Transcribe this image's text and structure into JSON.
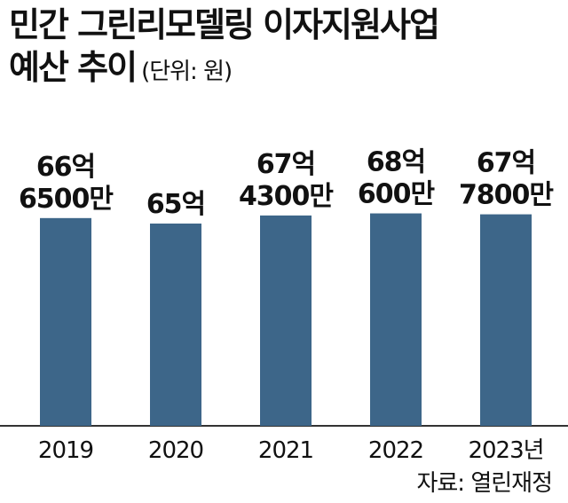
{
  "title": {
    "line1": "민간 그린리모델링 이자지원사업",
    "line2": "예산 추이",
    "unit": "(단위: 원)"
  },
  "source": "자료:  열린재정",
  "chart_data": {
    "type": "bar",
    "categories": [
      "2019",
      "2020",
      "2021",
      "2022",
      "2023년"
    ],
    "values": [
      6665000000,
      6500000000,
      6743000000,
      6806000000,
      6778000000
    ],
    "data_labels": [
      [
        "66억",
        "6500만"
      ],
      [
        "65억"
      ],
      [
        "67억",
        "4300만"
      ],
      [
        "68억",
        "600만"
      ],
      [
        "67억",
        "7800만"
      ]
    ],
    "bar_color": "#3d6689",
    "axis_color": "#333333",
    "grid": false
  }
}
